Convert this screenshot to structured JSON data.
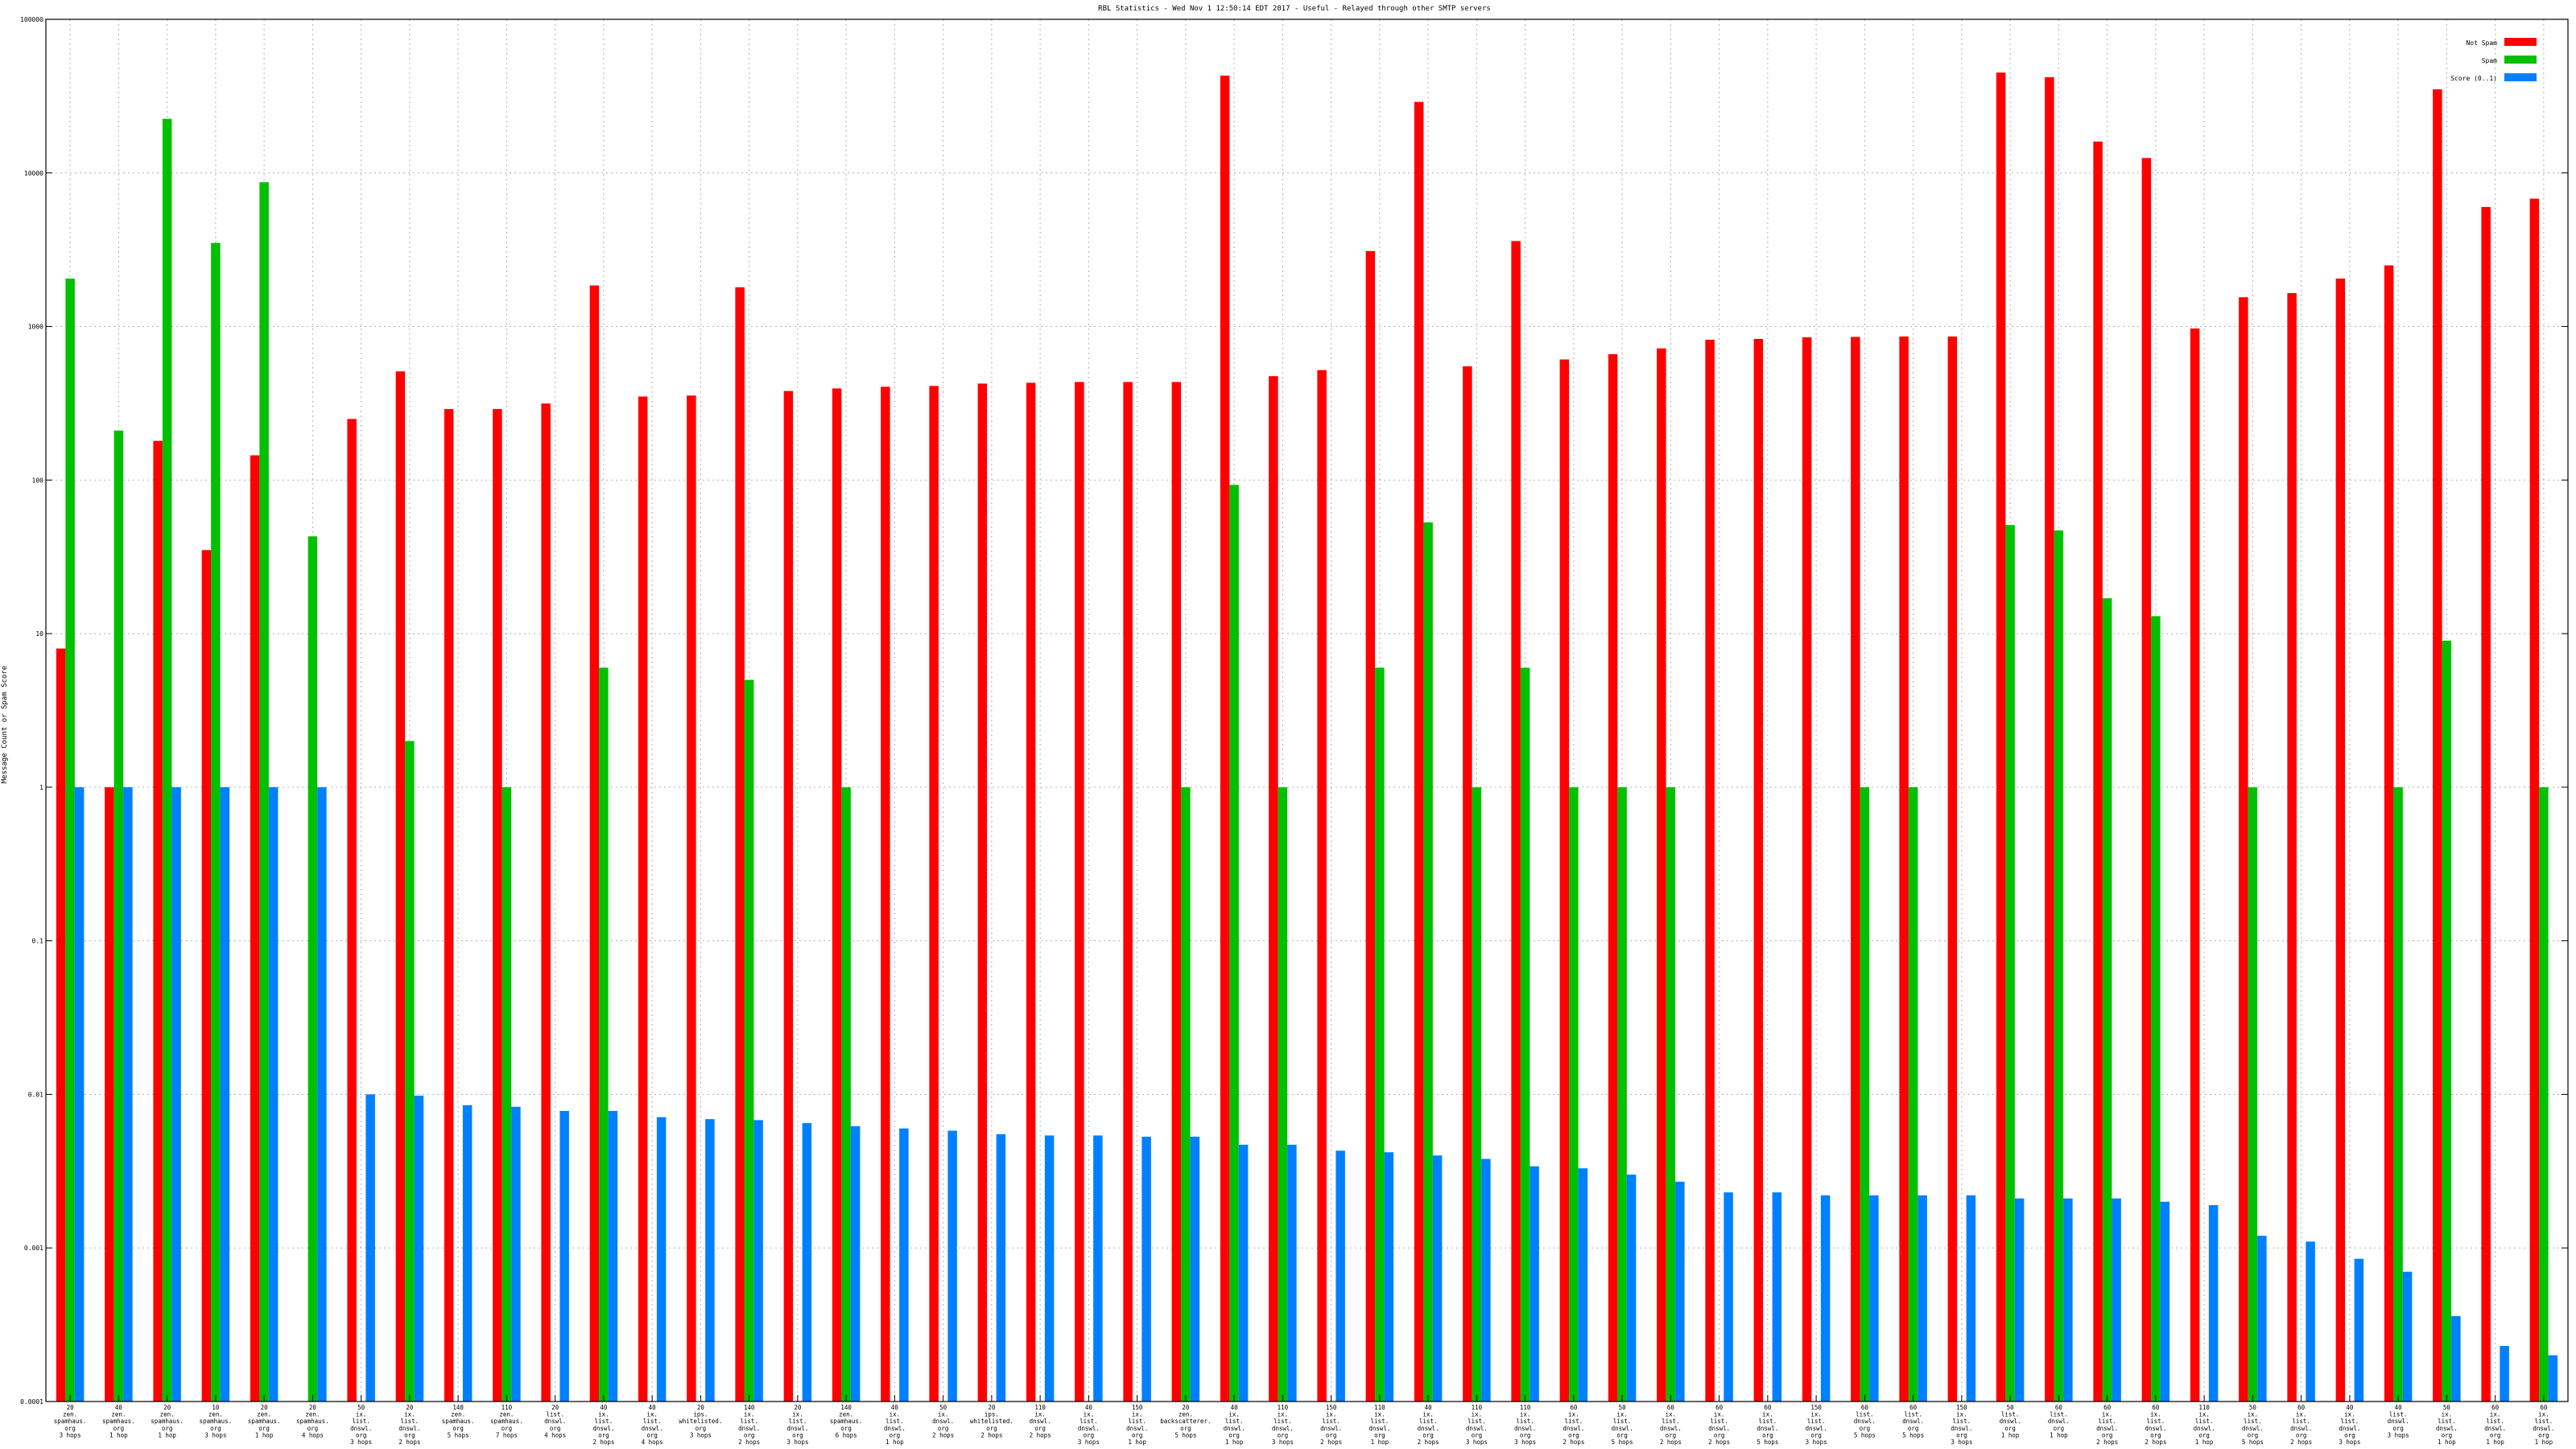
{
  "chart_data": {
    "type": "bar",
    "title": "RBL Statistics - Wed Nov  1 12:50:14 EDT 2017 - Useful - Relayed through other SMTP servers",
    "ylabel": "Message Count or Spam Score",
    "xlabel": "",
    "yscale": "log",
    "ylim": [
      0.0001,
      100000
    ],
    "yticks": [
      {
        "value": 100000,
        "label": "100000"
      },
      {
        "value": 10000,
        "label": "10000"
      },
      {
        "value": 1000,
        "label": "1000"
      },
      {
        "value": 100,
        "label": "100"
      },
      {
        "value": 10,
        "label": "10"
      },
      {
        "value": 1,
        "label": "1"
      },
      {
        "value": 0.1,
        "label": "0.1"
      },
      {
        "value": 0.01,
        "label": "0.01"
      },
      {
        "value": 0.001,
        "label": "0.001"
      },
      {
        "value": 0.0001,
        "label": "0.0001"
      }
    ],
    "grid": true,
    "legend_position": "top-right",
    "colors": {
      "not_spam": "#ff0000",
      "spam": "#00c000",
      "score": "#0080ff"
    },
    "categories": [
      [
        "20",
        "zen.",
        "spamhaus.",
        "org",
        "3 hops"
      ],
      [
        "40",
        "zen.",
        "spamhaus.",
        "org",
        "1 hop"
      ],
      [
        "20",
        "zen.",
        "spamhaus.",
        "org",
        "1 hop"
      ],
      [
        "10",
        "zen.",
        "spamhaus.",
        "org",
        "3 hops"
      ],
      [
        "20",
        "zen.",
        "spamhaus.",
        "org",
        "1 hop"
      ],
      [
        "20",
        "zen.",
        "spamhaus.",
        "org",
        "4 hops"
      ],
      [
        "50",
        "ix.",
        "list.",
        "dnswl.",
        "org",
        "3 hops"
      ],
      [
        "20",
        "ix.",
        "list.",
        "dnswl.",
        "org",
        "2 hops"
      ],
      [
        "140",
        "zen.",
        "spamhaus.",
        "org",
        "5 hops"
      ],
      [
        "110",
        "zen.",
        "spamhaus.",
        "org",
        "7 hops"
      ],
      [
        "20",
        "list.",
        "dnswl.",
        "org",
        "4 hops"
      ],
      [
        "40",
        "ix.",
        "list.",
        "dnswl.",
        "org",
        "2 hops"
      ],
      [
        "40",
        "ix.",
        "list.",
        "dnswl.",
        "org",
        "4 hops"
      ],
      [
        "20",
        "ips.",
        "whitelisted.",
        "org",
        "3 hops"
      ],
      [
        "140",
        "ix.",
        "list.",
        "dnswl.",
        "org",
        "2 hops"
      ],
      [
        "20",
        "ix.",
        "list.",
        "dnswl.",
        "org",
        "3 hops"
      ],
      [
        "140",
        "zen.",
        "spamhaus.",
        "org",
        "6 hops"
      ],
      [
        "40",
        "ix.",
        "list.",
        "dnswl.",
        "org",
        "1 hop"
      ],
      [
        "50",
        "ix.",
        "dnswl.",
        "org",
        "2 hops"
      ],
      [
        "20",
        "ips.",
        "whitelisted.",
        "org",
        "2 hops"
      ],
      [
        "110",
        "ix.",
        "dnswl.",
        "org",
        "2 hops"
      ],
      [
        "40",
        "ix.",
        "list.",
        "dnswl.",
        "org",
        "3 hops"
      ],
      [
        "150",
        "ix.",
        "list.",
        "dnswl.",
        "org",
        "1 hop"
      ],
      [
        "20",
        "zen.",
        "backscatterer.",
        "org",
        "5 hops"
      ],
      [
        "40",
        "ix.",
        "list.",
        "dnswl.",
        "org",
        "1 hop"
      ],
      [
        "110",
        "ix.",
        "list.",
        "dnswl.",
        "org",
        "3 hops"
      ],
      [
        "150",
        "ix.",
        "list.",
        "dnswl.",
        "org",
        "2 hops"
      ],
      [
        "110",
        "ix.",
        "list.",
        "dnswl.",
        "org",
        "1 hop"
      ],
      [
        "40",
        "ix.",
        "list.",
        "dnswl.",
        "org",
        "2 hops"
      ],
      [
        "110",
        "ix.",
        "list.",
        "dnswl.",
        "org",
        "3 hops"
      ],
      [
        "110",
        "ix.",
        "list.",
        "dnswl.",
        "org",
        "3 hops"
      ],
      [
        "60",
        "ix.",
        "list.",
        "dnswl.",
        "org",
        "2 hops"
      ],
      [
        "50",
        "ix.",
        "list.",
        "dnswl.",
        "org",
        "5 hops"
      ],
      [
        "60",
        "ix.",
        "list.",
        "dnswl.",
        "org",
        "2 hops"
      ],
      [
        "60",
        "ix.",
        "list.",
        "dnswl.",
        "org",
        "2 hops"
      ],
      [
        "60",
        "ix.",
        "list.",
        "dnswl.",
        "org",
        "5 hops"
      ],
      [
        "150",
        "ix.",
        "list.",
        "dnswl.",
        "org",
        "3 hops"
      ],
      [
        "60",
        "list.",
        "dnswl.",
        "org",
        "5 hops"
      ],
      [
        "60",
        "list.",
        "dnswl.",
        "org",
        "5 hops"
      ],
      [
        "150",
        "ix.",
        "list.",
        "dnswl.",
        "org",
        "3 hops"
      ],
      [
        "50",
        "list.",
        "dnswl.",
        "org",
        "1 hop"
      ],
      [
        "60",
        "list.",
        "dnswl.",
        "org",
        "1 hop"
      ],
      [
        "60",
        "ix.",
        "list.",
        "dnswl.",
        "org",
        "2 hops"
      ],
      [
        "60",
        "ix.",
        "list.",
        "dnswl.",
        "org",
        "2 hops"
      ],
      [
        "110",
        "ix.",
        "list.",
        "dnswl.",
        "org",
        "1 hop"
      ],
      [
        "50",
        "ix.",
        "list.",
        "dnswl.",
        "org",
        "5 hops"
      ],
      [
        "60",
        "ix.",
        "list.",
        "dnswl.",
        "org",
        "2 hops"
      ],
      [
        "40",
        "ix.",
        "list.",
        "dnswl.",
        "org",
        "3 hops"
      ],
      [
        "40",
        "list.",
        "dnswl.",
        "org",
        "3 hops"
      ],
      [
        "50",
        "ix.",
        "list.",
        "dnswl.",
        "org",
        "1 hop"
      ],
      [
        "60",
        "ix.",
        "list.",
        "dnswl.",
        "org",
        "1 hop"
      ],
      [
        "60",
        "ix.",
        "list.",
        "dnswl.",
        "org",
        "1 hop"
      ]
    ],
    "series": [
      {
        "name": "Not Spam",
        "key": "not_spam",
        "values": [
          8,
          1,
          180,
          35,
          145,
          null,
          250,
          510,
          290,
          290,
          315,
          1850,
          350,
          355,
          1800,
          380,
          395,
          405,
          410,
          425,
          430,
          435,
          435,
          435,
          43000,
          475,
          520,
          3100,
          29000,
          550,
          3600,
          610,
          660,
          720,
          820,
          830,
          850,
          855,
          860,
          860,
          45000,
          42000,
          16000,
          12500,
          970,
          1550,
          1650,
          2050,
          2500,
          35000,
          6000,
          6800
        ]
      },
      {
        "name": "Spam",
        "key": "spam",
        "values": [
          2050,
          210,
          22500,
          3500,
          8700,
          43,
          null,
          2,
          null,
          1,
          null,
          6,
          null,
          null,
          5,
          null,
          1,
          null,
          null,
          null,
          null,
          null,
          null,
          1,
          93,
          1,
          null,
          6,
          53,
          1,
          6,
          1,
          1,
          1,
          null,
          null,
          null,
          1,
          1,
          null,
          51,
          47,
          17,
          13,
          null,
          1,
          null,
          null,
          1,
          9,
          null,
          1
        ]
      },
      {
        "name": "Score (0..1)",
        "key": "score",
        "values": [
          1,
          1,
          1,
          1,
          1,
          1,
          0.01,
          0.0098,
          0.0085,
          0.0083,
          0.0078,
          0.0078,
          0.0071,
          0.0069,
          0.0068,
          0.0065,
          0.0062,
          0.006,
          0.0058,
          0.0055,
          0.0054,
          0.0054,
          0.0053,
          0.0053,
          0.0047,
          0.0047,
          0.0043,
          0.0042,
          0.004,
          0.0038,
          0.0034,
          0.0033,
          0.003,
          0.0027,
          0.0023,
          0.0023,
          0.0022,
          0.0022,
          0.0022,
          0.0022,
          0.0021,
          0.0021,
          0.0021,
          0.002,
          0.0019,
          0.0012,
          0.0011,
          0.00085,
          0.0007,
          0.00036,
          0.00023,
          0.0002
        ]
      }
    ]
  }
}
